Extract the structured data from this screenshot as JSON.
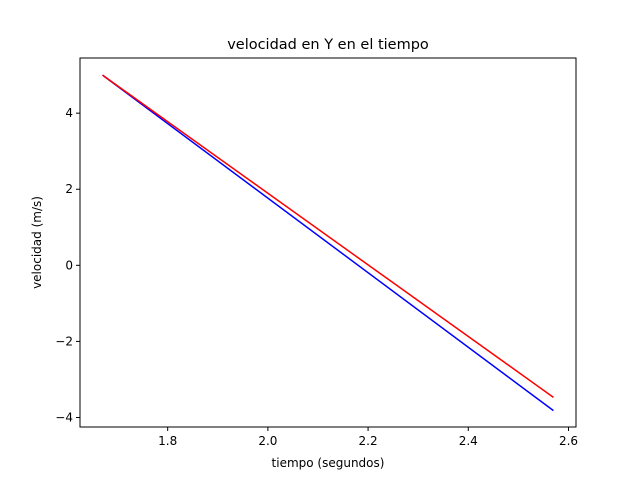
{
  "chart_data": {
    "type": "line",
    "title": "velocidad en Y en el tiempo",
    "xlabel": "tiempo (segundos)",
    "ylabel": "velocidad (m/s)",
    "xlim": [
      1.625,
      2.615
    ],
    "ylim": [
      -4.25,
      5.45
    ],
    "xticks": [
      1.8,
      2.0,
      2.2,
      2.4,
      2.6
    ],
    "xtick_labels": [
      "1.8",
      "2.0",
      "2.2",
      "2.4",
      "2.6"
    ],
    "yticks": [
      -4,
      -2,
      0,
      2,
      4
    ],
    "ytick_labels": [
      "−4",
      "−2",
      "0",
      "2",
      "4"
    ],
    "grid": false,
    "series": [
      {
        "color": "#0000ff",
        "x": [
          1.67,
          2.57
        ],
        "y": [
          5.0,
          -3.82
        ]
      },
      {
        "color": "#ff0000",
        "x": [
          1.67,
          2.57
        ],
        "y": [
          5.0,
          -3.47
        ]
      }
    ]
  }
}
